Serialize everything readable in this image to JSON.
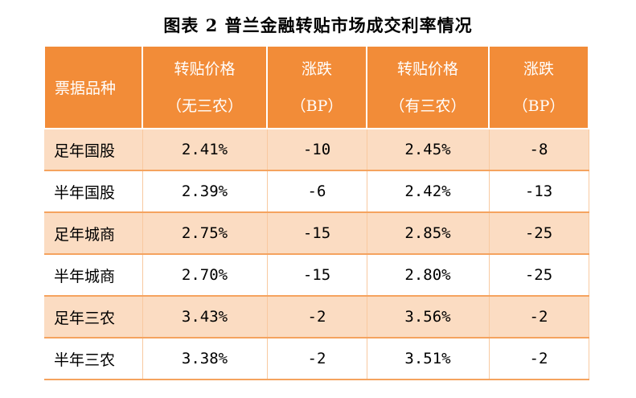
{
  "title": "图表 2  普兰金融转贴市场成交利率情况",
  "headers": {
    "col0": "票据品种",
    "col1_line1": "转贴价格",
    "col1_line2": "（无三农）",
    "col2_line1": "涨跌",
    "col2_line2": "（BP）",
    "col3_line1": "转贴价格",
    "col3_line2": "（有三农）",
    "col4_line1": "涨跌",
    "col4_line2": "（BP）"
  },
  "rows": [
    {
      "name": "足年国股",
      "price_no": "2.41%",
      "chg_no": "-10",
      "price_yes": "2.45%",
      "chg_yes": "-8"
    },
    {
      "name": "半年国股",
      "price_no": "2.39%",
      "chg_no": "-6",
      "price_yes": "2.42%",
      "chg_yes": "-13"
    },
    {
      "name": "足年城商",
      "price_no": "2.75%",
      "chg_no": "-15",
      "price_yes": "2.85%",
      "chg_yes": "-25"
    },
    {
      "name": "半年城商",
      "price_no": "2.70%",
      "chg_no": "-15",
      "price_yes": "2.80%",
      "chg_yes": "-25"
    },
    {
      "name": "足年三农",
      "price_no": "3.43%",
      "chg_no": "-2",
      "price_yes": "3.56%",
      "chg_yes": "-2"
    },
    {
      "name": "半年三农",
      "price_no": "3.38%",
      "chg_no": "-2",
      "price_yes": "3.51%",
      "chg_yes": "-2"
    }
  ],
  "colors": {
    "header_bg": "#f28c38",
    "header_text": "#ffffff",
    "shaded_row": "#fbdcc2",
    "border": "#f5a35f"
  }
}
